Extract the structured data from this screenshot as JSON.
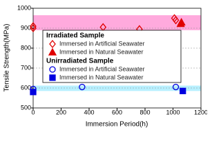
{
  "chart_data": {
    "type": "scatter",
    "xlabel": "Immersion Period(h)",
    "ylabel": "Tensile Strength(MPa)",
    "xlim": [
      0,
      1200
    ],
    "xticks": [
      0,
      200,
      400,
      600,
      800,
      1000,
      1200
    ],
    "ylim": [
      500,
      1000
    ],
    "yticks": [
      500,
      600,
      700,
      800,
      900,
      1000
    ],
    "grid": true,
    "bands": [
      {
        "range": [
          890,
          965
        ],
        "color": "#ffaadd"
      },
      {
        "range": [
          585,
          612
        ],
        "color": "#b8f0ff"
      }
    ],
    "groups": [
      {
        "name": "Irradiated Sample",
        "series": [
          {
            "name": "Immersed in Artificial Seawater",
            "color": "#e00000",
            "marker": "diamond",
            "filled": false,
            "x": [
              0,
              0,
              500,
              760,
              1010,
              1020
            ],
            "values": [
              910,
              900,
              905,
              895,
              950,
              940
            ]
          },
          {
            "name": "Immersed in Natural Seawater",
            "color": "#e00000",
            "marker": "triangle",
            "filled": true,
            "x": [
              1060,
              1055
            ],
            "values": [
              930,
              922
            ]
          }
        ]
      },
      {
        "name": "Unirradiated Sample",
        "series": [
          {
            "name": "Immersed in Artificial Seawater",
            "color": "#0000e0",
            "marker": "circle",
            "filled": false,
            "x": [
              0,
              350,
              1020
            ],
            "values": [
              595,
              605,
              605
            ]
          },
          {
            "name": "Immersed in Natural Seawater",
            "color": "#0000e0",
            "marker": "square",
            "filled": true,
            "x": [
              0,
              1070
            ],
            "values": [
              580,
              585
            ]
          }
        ]
      }
    ]
  }
}
